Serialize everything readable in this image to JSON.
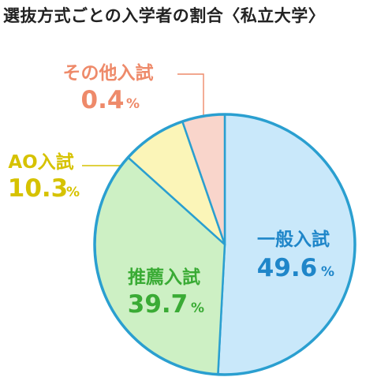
{
  "title": "選抜方式ごとの入学者の割合〈私立大学〉",
  "chart_data": {
    "type": "pie",
    "unit": "%",
    "slices": [
      {
        "name": "一般入試",
        "value": 49.6,
        "fill": "#c9e8fa",
        "text_color": "#1f86c9"
      },
      {
        "name": "推薦入試",
        "value": 39.7,
        "fill": "#cdf0c4",
        "text_color": "#3aab35"
      },
      {
        "name": "AO入試",
        "value": 10.3,
        "fill": "#fbf5b8",
        "text_color": "#d6c200"
      },
      {
        "name": "その他入試",
        "value": 0.4,
        "fill": "#f9d5cb",
        "text_color": "#ee8a6a"
      }
    ],
    "outline_color": "#2a9fd0"
  }
}
